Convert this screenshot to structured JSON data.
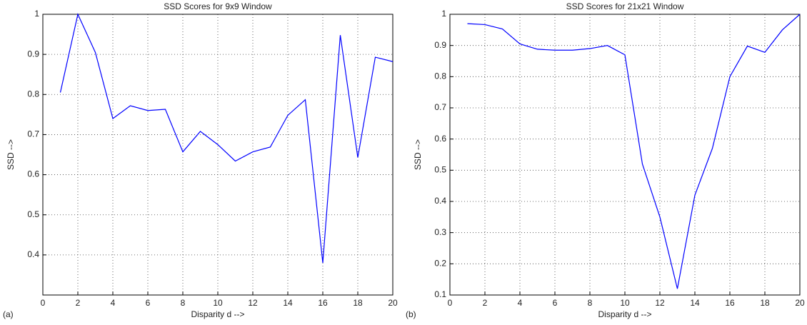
{
  "chart_data": [
    {
      "type": "line",
      "title": "SSD Scores for 9x9 Window",
      "panel_label": "(a)",
      "x_label": "Disparity    d -->",
      "y_label": "SSD  -->",
      "x": [
        1,
        2,
        3,
        4,
        5,
        6,
        7,
        8,
        9,
        10,
        11,
        12,
        13,
        14,
        15,
        16,
        17,
        18,
        19,
        20
      ],
      "values": [
        0.805,
        1.0,
        0.905,
        0.74,
        0.772,
        0.76,
        0.763,
        0.657,
        0.708,
        0.675,
        0.634,
        0.657,
        0.669,
        0.748,
        0.787,
        0.38,
        0.948,
        0.643,
        0.893,
        0.882
      ],
      "color": "#0000ff",
      "xlim": [
        0,
        20
      ],
      "xticks": [
        0,
        2,
        4,
        6,
        8,
        10,
        12,
        14,
        16,
        18,
        20
      ],
      "ylim": [
        0.3,
        1
      ],
      "yticks": [
        0.4,
        0.5,
        0.6,
        0.7,
        0.8,
        0.9,
        1
      ],
      "grid": true
    },
    {
      "type": "line",
      "title": "SSD Scores for 21x21 Window",
      "panel_label": "(b)",
      "x_label": "Disparity    d -->",
      "y_label": "SSD  -->",
      "x": [
        1,
        2,
        3,
        4,
        5,
        6,
        7,
        8,
        9,
        10,
        11,
        12,
        13,
        14,
        15,
        16,
        17,
        18,
        19,
        20
      ],
      "values": [
        0.97,
        0.967,
        0.953,
        0.905,
        0.888,
        0.885,
        0.885,
        0.89,
        0.9,
        0.87,
        0.52,
        0.35,
        0.12,
        0.42,
        0.57,
        0.8,
        0.898,
        0.878,
        0.95,
        1.0
      ],
      "color": "#0000ff",
      "xlim": [
        0,
        20
      ],
      "xticks": [
        0,
        2,
        4,
        6,
        8,
        10,
        12,
        14,
        16,
        18,
        20
      ],
      "ylim": [
        0.1,
        1
      ],
      "yticks": [
        0.1,
        0.2,
        0.3,
        0.4,
        0.5,
        0.6,
        0.7,
        0.8,
        0.9,
        1
      ],
      "grid": true
    }
  ]
}
